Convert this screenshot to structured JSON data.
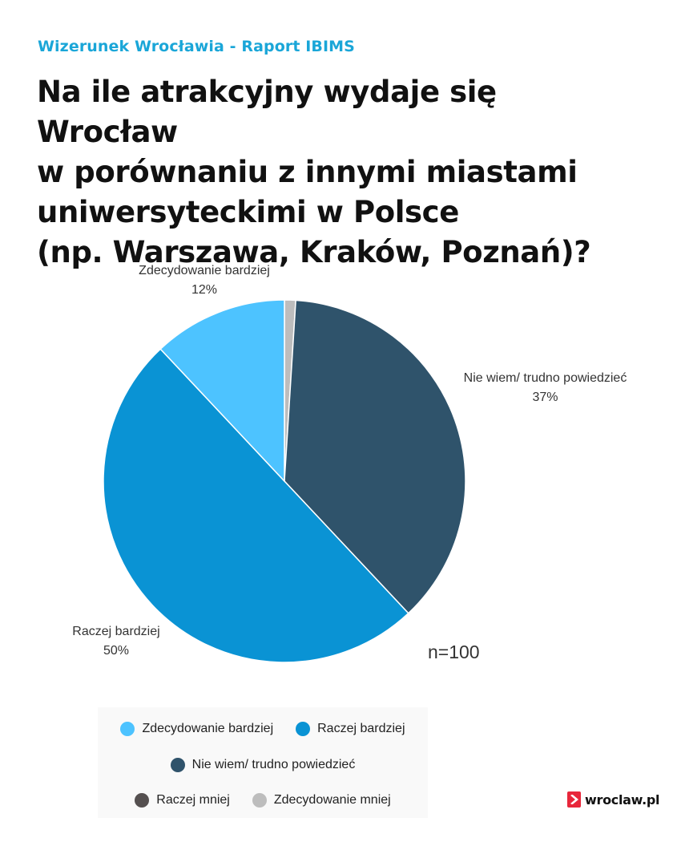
{
  "header": {
    "kicker": "Wizerunek Wrocławia - Raport IBIMS",
    "title_lines": [
      "Na ile atrakcyjny wydaje się Wrocław",
      "w porównaniu z innymi miastami",
      "uniwersyteckimi w Polsce",
      "(np. Warszawa, Kraków, Poznań)?"
    ]
  },
  "chart_data": {
    "type": "pie",
    "title": "Na ile atrakcyjny wydaje się Wrocław w porównaniu z innymi miastami uniwersyteckimi w Polsce (np. Warszawa, Kraków, Poznań)?",
    "note": "n=100",
    "legend_position": "bottom",
    "slices": [
      {
        "label": "Zdecydowanie bardziej",
        "value": 12,
        "display": "12%",
        "color": "#4dc3ff"
      },
      {
        "label": "Raczej bardziej",
        "value": 50,
        "display": "50%",
        "color": "#0a93d4"
      },
      {
        "label": "Nie wiem/ trudno powiedzieć",
        "value": 37,
        "display": "37%",
        "color": "#2f536b"
      },
      {
        "label": "Raczej mniej",
        "value": 0,
        "display": "",
        "color": "#555050"
      },
      {
        "label": "Zdecydowanie mniej",
        "value": 1,
        "display": "",
        "color": "#bdbdbd"
      }
    ],
    "clockwise_order": [
      "Zdecydowanie mniej",
      "Nie wiem/ trudno powiedzieć",
      "Raczej bardziej",
      "Zdecydowanie bardziej",
      "Raczej mniej"
    ]
  },
  "branding": {
    "logo_text": "wroclaw.pl",
    "logo_icon": "chevron-right-icon"
  }
}
